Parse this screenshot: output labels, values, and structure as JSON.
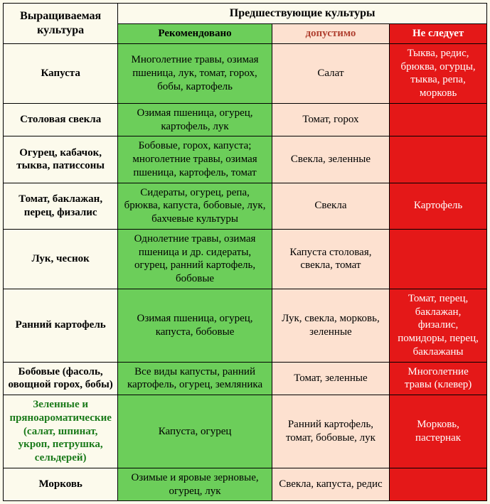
{
  "headers": {
    "crop": "Выращиваемая культура",
    "prev": "Предшествующие культуры",
    "rec": "Рекомендовано",
    "ok": "допустимо",
    "bad": "Не следует"
  },
  "rows": [
    {
      "crop": "Капуста",
      "rec": "Многолетние травы, озимая пшеница, лук, томат, горох, бобы, картофель",
      "ok": "Салат",
      "bad": "Тыква, редис, брюква, огурцы, тыква, репа, морковь"
    },
    {
      "crop": "Столовая свекла",
      "rec": "Озимая пшеница, огурец, картофель, лук",
      "ok": "Томат, горох",
      "bad": ""
    },
    {
      "crop": "Огурец, кабачок, тыква, патиссоны",
      "rec": "Бобовые, горох, капуста; многолетние травы, озимая пшеница, картофель, томат",
      "ok": "Свекла, зеленные",
      "bad": ""
    },
    {
      "crop": "Томат, баклажан, перец, физалис",
      "rec": "Сидераты, огурец, репа, брюква, капуста, бобовые, лук, бахчевые культуры",
      "ok": "Свекла",
      "bad": "Картофель"
    },
    {
      "crop": "Лук, чеснок",
      "rec": "Однолетние травы, озимая пшеница и др. сидераты, огурец, ранний картофель, бобовые",
      "ok": "Капуста столовая, свекла, томат",
      "bad": ""
    },
    {
      "crop": "Ранний картофель",
      "rec": "Озимая пшеница, огурец, капуста, бобовые",
      "ok": "Лук, свекла, морковь, зеленные",
      "bad": "Томат, перец, баклажан, физалис, помидоры, перец, баклажаны"
    },
    {
      "crop": "Бобовые (фасоль, овощной горох, бобы)",
      "rec": "Все виды капусты, ранний картофель, огурец, земляника",
      "ok": "Томат, зеленные",
      "bad": "Многолетние травы (клевер)"
    },
    {
      "crop": "Зеленные и пряноароматические (салат, шпинат, укроп, петрушка, сельдерей)",
      "crop_green": true,
      "rec": "Капуста, огурец",
      "ok": "Ранний картофель, томат, бобовые, лук",
      "bad": "Морковь, пастернак"
    },
    {
      "crop": "Морковь",
      "rec": "Озимые и яровые зерновые, огурец, лук",
      "ok": "Свекла, капуста, редис",
      "bad": ""
    }
  ],
  "colors": {
    "rec_bg": "#6cce5a",
    "ok_bg": "#fde1d0",
    "bad_bg": "#e41818",
    "page_bg": "#fcfaec"
  }
}
